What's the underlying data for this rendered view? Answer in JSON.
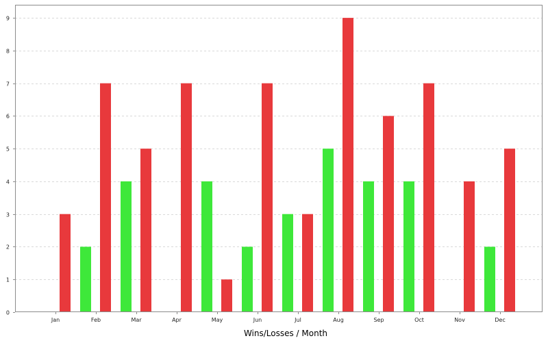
{
  "chart_data": {
    "type": "bar",
    "title": "",
    "xlabel": "Wins/Losses / Month",
    "ylabel": "",
    "ylim": [
      0,
      9.4
    ],
    "yticks": [
      0,
      1,
      2,
      3,
      4,
      5,
      6,
      7,
      8,
      9
    ],
    "grid": true,
    "legend": "none",
    "categories": [
      "Jan",
      "Feb",
      "Mar",
      "Apr",
      "May",
      "Jun",
      "Jul",
      "Aug",
      "Sep",
      "Oct",
      "Nov",
      "Dec"
    ],
    "series": [
      {
        "color": "#3ee83a",
        "values": [
          0,
          2,
          4,
          0,
          4,
          2,
          3,
          5,
          4,
          4,
          0,
          2
        ]
      },
      {
        "color": "#e8393c",
        "values": [
          3,
          7,
          5,
          7,
          1,
          7,
          3,
          9,
          6,
          7,
          4,
          5
        ]
      }
    ]
  }
}
